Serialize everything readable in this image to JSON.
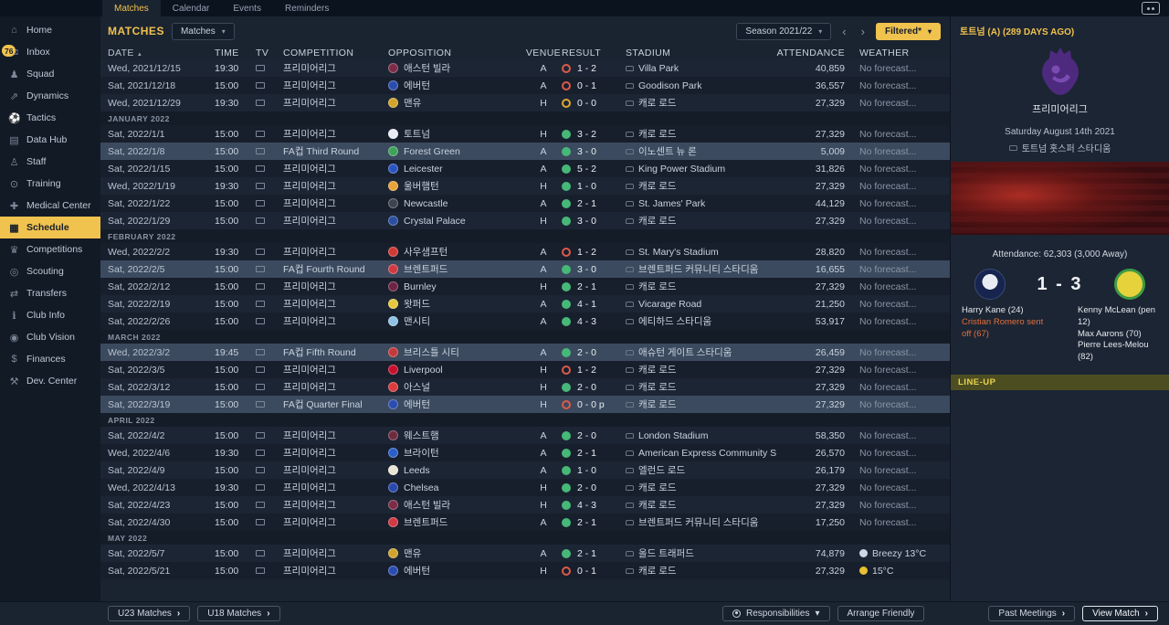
{
  "colors": {
    "accent": "#f0c24e",
    "win": "#46b878",
    "loss": "#dd5a4a",
    "draw": "#e0a830"
  },
  "top_bar": {
    "tabs": [
      {
        "label": "Matches",
        "active": true
      },
      {
        "label": "Calendar",
        "active": false
      },
      {
        "label": "Events",
        "active": false
      },
      {
        "label": "Reminders",
        "active": false
      }
    ]
  },
  "sidebar": {
    "items": [
      {
        "label": "Home",
        "icon": "home-icon"
      },
      {
        "label": "Inbox",
        "icon": "inbox-icon",
        "badge": "76"
      },
      {
        "label": "Squad",
        "icon": "squad-icon"
      },
      {
        "label": "Dynamics",
        "icon": "dynamics-icon"
      },
      {
        "label": "Tactics",
        "icon": "tactics-icon"
      },
      {
        "label": "Data Hub",
        "icon": "datahub-icon"
      },
      {
        "label": "Staff",
        "icon": "staff-icon"
      },
      {
        "label": "Training",
        "icon": "training-icon"
      },
      {
        "label": "Medical Center",
        "icon": "medical-icon"
      },
      {
        "label": "Schedule",
        "icon": "schedule-icon",
        "selected": true
      },
      {
        "label": "Competitions",
        "icon": "competitions-icon"
      },
      {
        "label": "Scouting",
        "icon": "scouting-icon"
      },
      {
        "label": "Transfers",
        "icon": "transfers-icon"
      },
      {
        "label": "Club Info",
        "icon": "clubinfo-icon"
      },
      {
        "label": "Club Vision",
        "icon": "clubvision-icon"
      },
      {
        "label": "Finances",
        "icon": "finances-icon"
      },
      {
        "label": "Dev. Center",
        "icon": "devcenter-icon"
      }
    ]
  },
  "toolbar": {
    "title": "MATCHES",
    "view_dropdown": "Matches",
    "season_dropdown": "Season 2021/22",
    "filter_dropdown": "Filtered*"
  },
  "table": {
    "columns": [
      "DATE",
      "TIME",
      "TV",
      "COMPETITION",
      "OPPOSITION",
      "VENUE",
      "RESULT",
      "STADIUM",
      "ATTENDANCE",
      "WEATHER"
    ],
    "groups": [
      {
        "month": null,
        "rows": [
          {
            "date": "Wed, 2021/12/15",
            "time": "19:30",
            "comp": "프리미어리그",
            "opp": "애스턴 빌라",
            "badge": "#7c2c47",
            "venue": "A",
            "result": "loss",
            "score": "1 - 2",
            "stadium": "Villa Park",
            "att": "40,859",
            "weather": "No forecast..."
          },
          {
            "date": "Sat, 2021/12/18",
            "time": "15:00",
            "comp": "프리미어리그",
            "opp": "에버턴",
            "badge": "#2a4db0",
            "venue": "A",
            "result": "loss",
            "score": "0 - 1",
            "stadium": "Goodison Park",
            "att": "36,557",
            "weather": "No forecast..."
          },
          {
            "date": "Wed, 2021/12/29",
            "time": "19:30",
            "comp": "프리미어리그",
            "opp": "맨유",
            "badge": "#d0a32c",
            "venue": "H",
            "result": "draw",
            "score": "0 - 0",
            "stadium": "캐로 로드",
            "att": "27,329",
            "weather": "No forecast..."
          }
        ]
      },
      {
        "month": "JANUARY 2022",
        "rows": [
          {
            "date": "Sat, 2022/1/1",
            "time": "15:00",
            "comp": "프리미어리그",
            "opp": "토트넘",
            "badge": "#e9edf4",
            "venue": "H",
            "result": "win",
            "score": "3 - 2",
            "stadium": "캐로 로드",
            "att": "27,329",
            "weather": "No forecast..."
          },
          {
            "date": "Sat, 2022/1/8",
            "time": "15:00",
            "comp": "FA컵 Third Round",
            "opp": "Forest Green",
            "badge": "#3fa35a",
            "venue": "A",
            "result": "win",
            "score": "3 - 0",
            "stadium": "이노센트 뉴 론",
            "att": "5,009",
            "weather": "No forecast...",
            "highlight": true
          },
          {
            "date": "Sat, 2022/1/15",
            "time": "15:00",
            "comp": "프리미어리그",
            "opp": "Leicester",
            "badge": "#2a55c0",
            "venue": "A",
            "result": "win",
            "score": "5 - 2",
            "stadium": "King Power Stadium",
            "att": "31,826",
            "weather": "No forecast..."
          },
          {
            "date": "Wed, 2022/1/19",
            "time": "19:30",
            "comp": "프리미어리그",
            "opp": "울버햄턴",
            "badge": "#e8a23a",
            "venue": "H",
            "result": "win",
            "score": "1 - 0",
            "stadium": "캐로 로드",
            "att": "27,329",
            "weather": "No forecast..."
          },
          {
            "date": "Sat, 2022/1/22",
            "time": "15:00",
            "comp": "프리미어리그",
            "opp": "Newcastle",
            "badge": "#3d4450",
            "venue": "A",
            "result": "win",
            "score": "2 - 1",
            "stadium": "St. James' Park",
            "att": "44,129",
            "weather": "No forecast..."
          },
          {
            "date": "Sat, 2022/1/29",
            "time": "15:00",
            "comp": "프리미어리그",
            "opp": "Crystal Palace",
            "badge": "#2a4fa0",
            "venue": "H",
            "result": "win",
            "score": "3 - 0",
            "stadium": "캐로 로드",
            "att": "27,329",
            "weather": "No forecast..."
          }
        ]
      },
      {
        "month": "FEBRUARY 2022",
        "rows": [
          {
            "date": "Wed, 2022/2/2",
            "time": "19:30",
            "comp": "프리미어리그",
            "opp": "사우샘프턴",
            "badge": "#cf3a35",
            "venue": "A",
            "result": "loss",
            "score": "1 - 2",
            "stadium": "St. Mary's Stadium",
            "att": "28,820",
            "weather": "No forecast..."
          },
          {
            "date": "Sat, 2022/2/5",
            "time": "15:00",
            "comp": "FA컵 Fourth Round",
            "opp": "브렌트퍼드",
            "badge": "#cf3a44",
            "venue": "A",
            "result": "win",
            "score": "3 - 0",
            "stadium": "브렌트퍼드 커뮤니티 스타디움",
            "att": "16,655",
            "weather": "No forecast...",
            "highlight": true
          },
          {
            "date": "Sat, 2022/2/12",
            "time": "15:00",
            "comp": "프리미어리그",
            "opp": "Burnley",
            "badge": "#6e2444",
            "venue": "H",
            "result": "win",
            "score": "2 - 1",
            "stadium": "캐로 로드",
            "att": "27,329",
            "weather": "No forecast..."
          },
          {
            "date": "Sat, 2022/2/19",
            "time": "15:00",
            "comp": "프리미어리그",
            "opp": "왓퍼드",
            "badge": "#e6c73c",
            "venue": "A",
            "result": "win",
            "score": "4 - 1",
            "stadium": "Vicarage Road",
            "att": "21,250",
            "weather": "No forecast..."
          },
          {
            "date": "Sat, 2022/2/26",
            "time": "15:00",
            "comp": "프리미어리그",
            "opp": "맨시티",
            "badge": "#8fc2e4",
            "venue": "A",
            "result": "win",
            "score": "4 - 3",
            "stadium": "에티하드 스타디움",
            "att": "53,917",
            "weather": "No forecast..."
          }
        ]
      },
      {
        "month": "MARCH 2022",
        "rows": [
          {
            "date": "Wed, 2022/3/2",
            "time": "19:45",
            "comp": "FA컵 Fifth Round",
            "opp": "브리스틀 시티",
            "badge": "#c43a3a",
            "venue": "A",
            "result": "win",
            "score": "2 - 0",
            "stadium": "애슈턴 게이트 스타디움",
            "att": "26,459",
            "weather": "No forecast...",
            "highlight": true
          },
          {
            "date": "Sat, 2022/3/5",
            "time": "15:00",
            "comp": "프리미어리그",
            "opp": "Liverpool",
            "badge": "#c8102e",
            "venue": "H",
            "result": "loss",
            "score": "1 - 2",
            "stadium": "캐로 로드",
            "att": "27,329",
            "weather": "No forecast..."
          },
          {
            "date": "Sat, 2022/3/12",
            "time": "15:00",
            "comp": "프리미어리그",
            "opp": "아스널",
            "badge": "#d83c3c",
            "venue": "H",
            "result": "win",
            "score": "2 - 0",
            "stadium": "캐로 로드",
            "att": "27,329",
            "weather": "No forecast..."
          },
          {
            "date": "Sat, 2022/3/19",
            "time": "15:00",
            "comp": "FA컵 Quarter Final",
            "opp": "에버턴",
            "badge": "#2a4db0",
            "venue": "H",
            "result": "loss",
            "score": "0 - 0 p",
            "stadium": "캐로 로드",
            "att": "27,329",
            "weather": "No forecast...",
            "highlight": true
          }
        ]
      },
      {
        "month": "APRIL 2022",
        "rows": [
          {
            "date": "Sat, 2022/4/2",
            "time": "15:00",
            "comp": "프리미어리그",
            "opp": "웨스트햄",
            "badge": "#6e2b40",
            "venue": "A",
            "result": "win",
            "score": "2 - 0",
            "stadium": "London Stadium",
            "att": "58,350",
            "weather": "No forecast..."
          },
          {
            "date": "Wed, 2022/4/6",
            "time": "19:30",
            "comp": "프리미어리그",
            "opp": "브라이턴",
            "badge": "#2a5fc8",
            "venue": "A",
            "result": "win",
            "score": "2 - 1",
            "stadium": "American Express Community S...",
            "att": "26,570",
            "weather": "No forecast..."
          },
          {
            "date": "Sat, 2022/4/9",
            "time": "15:00",
            "comp": "프리미어리그",
            "opp": "Leeds",
            "badge": "#e9e6d4",
            "venue": "A",
            "result": "win",
            "score": "1 - 0",
            "stadium": "엘런드 로드",
            "att": "26,179",
            "weather": "No forecast..."
          },
          {
            "date": "Wed, 2022/4/13",
            "time": "19:30",
            "comp": "프리미어리그",
            "opp": "Chelsea",
            "badge": "#2a49ac",
            "venue": "H",
            "result": "win",
            "score": "2 - 0",
            "stadium": "캐로 로드",
            "att": "27,329",
            "weather": "No forecast..."
          },
          {
            "date": "Sat, 2022/4/23",
            "time": "15:00",
            "comp": "프리미어리그",
            "opp": "애스턴 빌라",
            "badge": "#7c2c47",
            "venue": "H",
            "result": "win",
            "score": "4 - 3",
            "stadium": "캐로 로드",
            "att": "27,329",
            "weather": "No forecast..."
          },
          {
            "date": "Sat, 2022/4/30",
            "time": "15:00",
            "comp": "프리미어리그",
            "opp": "브렌트퍼드",
            "badge": "#cf3a44",
            "venue": "A",
            "result": "win",
            "score": "2 - 1",
            "stadium": "브렌트퍼드 커뮤니티 스타디움",
            "att": "17,250",
            "weather": "No forecast..."
          }
        ]
      },
      {
        "month": "MAY 2022",
        "rows": [
          {
            "date": "Sat, 2022/5/7",
            "time": "15:00",
            "comp": "프리미어리그",
            "opp": "맨유",
            "badge": "#d0a32c",
            "venue": "A",
            "result": "win",
            "score": "2 - 1",
            "stadium": "올드 트래퍼드",
            "att": "74,879",
            "weather": "Breezy 13°C",
            "wicon": "breezy"
          },
          {
            "date": "Sat, 2022/5/21",
            "time": "15:00",
            "comp": "프리미어리그",
            "opp": "에버턴",
            "badge": "#2a4db0",
            "venue": "H",
            "result": "loss",
            "score": "0 - 1",
            "stadium": "캐로 로드",
            "att": "27,329",
            "weather": "15°C",
            "wicon": "sun"
          }
        ]
      }
    ]
  },
  "detail": {
    "title": "토트넘 (A) (289 DAYS AGO)",
    "competition": "프리미어리그",
    "date": "Saturday August 14th 2021",
    "stadium": "토트넘 홋스퍼 스타디움",
    "attendance": "Attendance: 62,303 (3,000 Away)",
    "score": "1 - 3",
    "home_scorers": [
      "Harry Kane (24)"
    ],
    "home_events": [
      "Cristian Romero sent off (67)"
    ],
    "away_scorers": [
      "Kenny McLean (pen 12)",
      "Max Aarons (70)",
      "Pierre Lees-Melou (82)"
    ],
    "lineup_label": "LINE-UP"
  },
  "bottom_bar": {
    "u23": "U23 Matches",
    "u18": "U18 Matches",
    "responsibilities": "Responsibilities",
    "arrange_friendly": "Arrange Friendly",
    "past_meetings": "Past Meetings",
    "view_match": "View Match"
  }
}
